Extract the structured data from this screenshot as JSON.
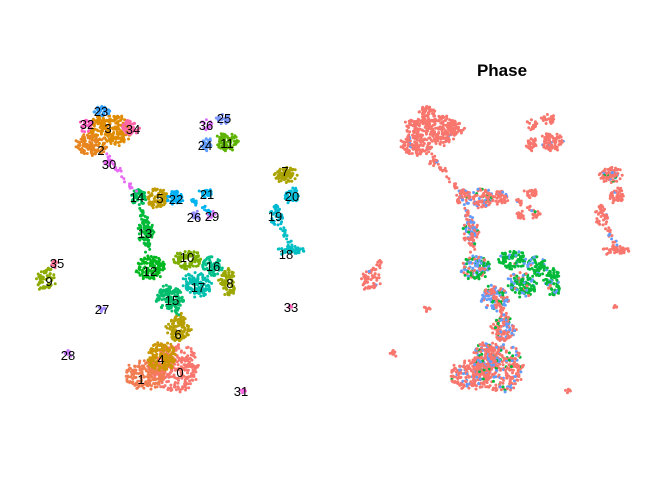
{
  "chart_data": [
    {
      "type": "scatter",
      "title": "",
      "xlabel": "",
      "ylabel": "",
      "legend": "none",
      "grid": false,
      "axes": false,
      "color_by": "cluster",
      "clusters": [
        {
          "id": "0",
          "color": "#F8766D"
        },
        {
          "id": "1",
          "color": "#F27D52"
        },
        {
          "id": "2",
          "color": "#E8851F"
        },
        {
          "id": "3",
          "color": "#E08B00"
        },
        {
          "id": "4",
          "color": "#CD9600"
        },
        {
          "id": "5",
          "color": "#C09B00"
        },
        {
          "id": "6",
          "color": "#B79F00"
        },
        {
          "id": "7",
          "color": "#ABA300"
        },
        {
          "id": "8",
          "color": "#9CA700"
        },
        {
          "id": "9",
          "color": "#8EAB00"
        },
        {
          "id": "10",
          "color": "#7CAE00"
        },
        {
          "id": "11",
          "color": "#5EB300"
        },
        {
          "id": "12",
          "color": "#00B81F"
        },
        {
          "id": "13",
          "color": "#00BA38"
        },
        {
          "id": "14",
          "color": "#00BC59"
        },
        {
          "id": "15",
          "color": "#00BE6C"
        },
        {
          "id": "16",
          "color": "#00C08B"
        },
        {
          "id": "17",
          "color": "#00C0AF"
        },
        {
          "id": "18",
          "color": "#00BFC4"
        },
        {
          "id": "19",
          "color": "#00B9CF"
        },
        {
          "id": "20",
          "color": "#00BCD8"
        },
        {
          "id": "21",
          "color": "#00B4EF"
        },
        {
          "id": "22",
          "color": "#00B0F6"
        },
        {
          "id": "23",
          "color": "#35A2FF"
        },
        {
          "id": "24",
          "color": "#619CFF"
        },
        {
          "id": "25",
          "color": "#7B96FF"
        },
        {
          "id": "26",
          "color": "#9590FF"
        },
        {
          "id": "27",
          "color": "#A58AFF"
        },
        {
          "id": "28",
          "color": "#C77CFF"
        },
        {
          "id": "29",
          "color": "#D575FE"
        },
        {
          "id": "30",
          "color": "#E76BF3"
        },
        {
          "id": "31",
          "color": "#F863DF"
        },
        {
          "id": "32",
          "color": "#FF61C3"
        },
        {
          "id": "33",
          "color": "#FF62BC"
        },
        {
          "id": "34",
          "color": "#FF66A8"
        },
        {
          "id": "35",
          "color": "#FF6C91"
        },
        {
          "id": "36",
          "color": "#DB72FB"
        }
      ]
    },
    {
      "type": "scatter",
      "title": "Phase",
      "xlabel": "",
      "ylabel": "",
      "legend": "none",
      "grid": false,
      "axes": false,
      "color_by": "phase",
      "phase_colors": {
        "G1": "#F8766D",
        "G2M": "#00BA38",
        "S": "#619CFF"
      }
    }
  ]
}
